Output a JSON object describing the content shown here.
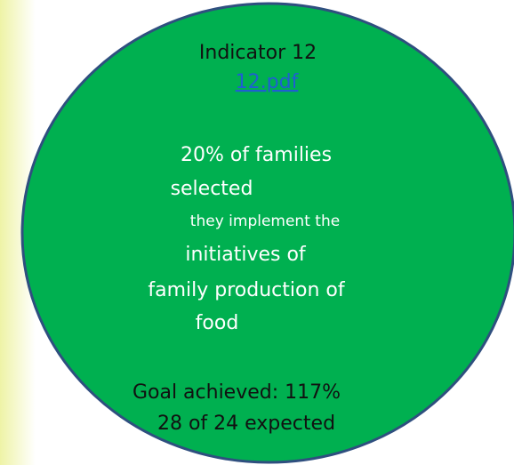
{
  "title": "Indicator 12",
  "link": "12.pdf",
  "description": [
    "20% of families",
    "selected",
    "they implement the",
    "initiatives of",
    "family production of",
    "food"
  ],
  "goal": "Goal achieved: 117%",
  "expected": "28 of 24 expected"
}
